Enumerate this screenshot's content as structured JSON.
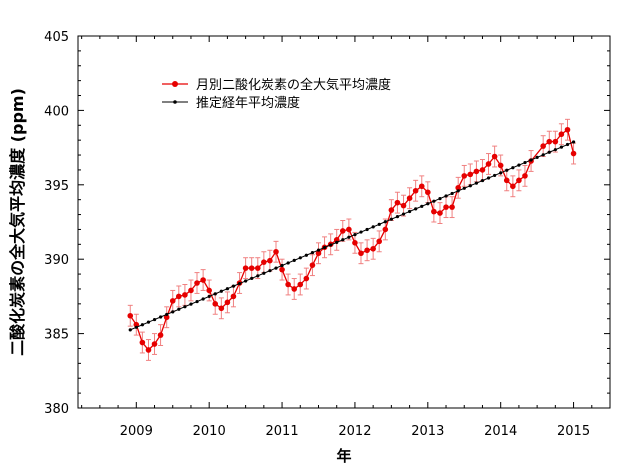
{
  "chart_data": {
    "type": "line",
    "title": "",
    "xlabel": "年",
    "ylabel": "二酸化炭素の全大気平均濃度 (ppm)",
    "xlim": [
      2008.2,
      2015.5
    ],
    "ylim": [
      380,
      405
    ],
    "x_ticks": [
      "2009",
      "2010",
      "2011",
      "2012",
      "2013",
      "2014",
      "2015"
    ],
    "y_ticks": [
      "380",
      "385",
      "390",
      "395",
      "400",
      "405"
    ],
    "grid": false,
    "legend_position": "top-left",
    "series": [
      {
        "name": "月別二酸化炭素の全大気平均濃度",
        "color": "#e60000",
        "marker": "circle",
        "error_bar": 0.7,
        "x": [
          2008.917,
          2009.0,
          2009.083,
          2009.167,
          2009.25,
          2009.333,
          2009.417,
          2009.5,
          2009.583,
          2009.667,
          2009.75,
          2009.833,
          2009.917,
          2010.0,
          2010.083,
          2010.167,
          2010.25,
          2010.333,
          2010.417,
          2010.5,
          2010.583,
          2010.667,
          2010.75,
          2010.833,
          2010.917,
          2011.0,
          2011.083,
          2011.167,
          2011.25,
          2011.333,
          2011.417,
          2011.5,
          2011.583,
          2011.667,
          2011.75,
          2011.833,
          2011.917,
          2012.0,
          2012.083,
          2012.167,
          2012.25,
          2012.333,
          2012.417,
          2012.5,
          2012.583,
          2012.667,
          2012.75,
          2012.833,
          2012.917,
          2013.0,
          2013.083,
          2013.167,
          2013.25,
          2013.333,
          2013.417,
          2013.5,
          2013.583,
          2013.667,
          2013.75,
          2013.833,
          2013.917,
          2014.0,
          2014.083,
          2014.167,
          2014.25,
          2014.333,
          2014.417,
          2014.583,
          2014.667,
          2014.75,
          2014.833,
          2014.917,
          2015.0
        ],
        "y": [
          386.2,
          385.6,
          384.4,
          383.9,
          384.3,
          384.9,
          386.1,
          387.2,
          387.5,
          387.6,
          387.9,
          388.4,
          388.6,
          387.9,
          387.0,
          386.7,
          387.1,
          387.5,
          388.4,
          389.4,
          389.4,
          389.4,
          389.8,
          389.9,
          390.5,
          389.3,
          388.3,
          388.0,
          388.3,
          388.7,
          389.6,
          390.4,
          390.8,
          391.0,
          391.3,
          391.9,
          392.0,
          391.1,
          390.4,
          390.6,
          390.7,
          391.2,
          392.0,
          393.3,
          393.8,
          393.6,
          394.1,
          394.6,
          394.9,
          394.5,
          393.2,
          393.1,
          393.5,
          393.5,
          394.8,
          395.6,
          395.7,
          395.9,
          396.0,
          396.4,
          396.9,
          396.3,
          395.3,
          394.9,
          395.3,
          395.6,
          396.6,
          397.6,
          397.9,
          397.9,
          398.4,
          398.7,
          397.1
        ]
      },
      {
        "name": "推定経年平均濃度",
        "color": "#000000",
        "marker": "dot",
        "x_start": 2008.917,
        "x_step": 0.0833333,
        "y_start": 385.25,
        "y_step": 0.173,
        "count": 74
      }
    ]
  }
}
